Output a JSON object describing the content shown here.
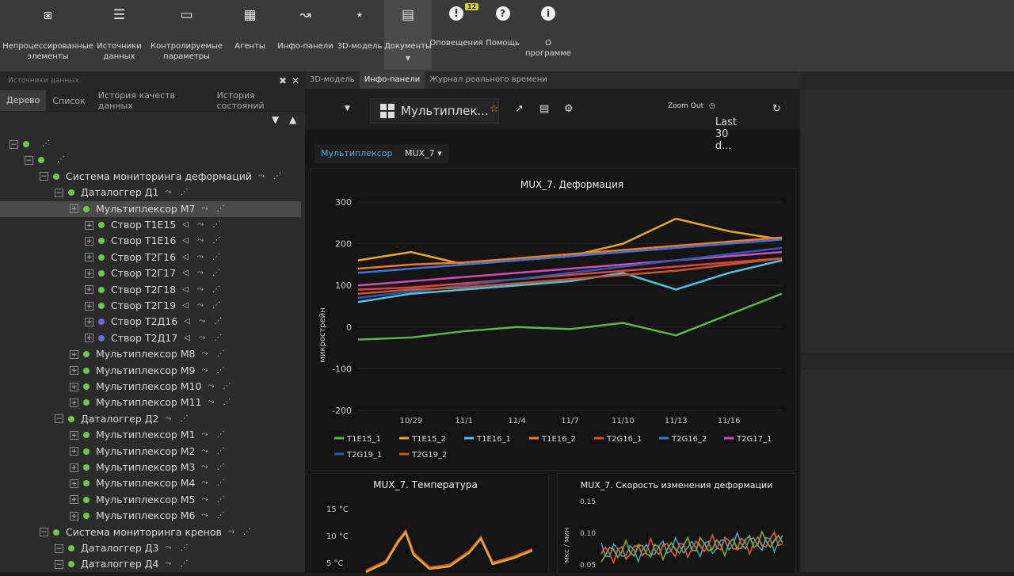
{
  "toolbar": {
    "items": [
      {
        "label": "Непроцессированные\nэлементы",
        "icon": "share-icon"
      },
      {
        "label": "Источники\nданных",
        "icon": "server-icon"
      },
      {
        "label": "Контролируемые\nпараметры",
        "icon": "chart-icon"
      },
      {
        "label": "Агенты",
        "icon": "calculator-icon"
      },
      {
        "label": "Инфо-панели",
        "icon": "trend-icon"
      },
      {
        "label": "3D-модель",
        "icon": "nodes-icon"
      },
      {
        "label": "Документы",
        "icon": "document-icon"
      },
      {
        "label": "Оповещения",
        "icon": "alert-icon"
      },
      {
        "label": "Помощь",
        "icon": "help-icon"
      },
      {
        "label": "О программе",
        "icon": "info-icon"
      }
    ],
    "alert_badge": "12"
  },
  "left_panel": {
    "title": "Источники данных",
    "tabs": [
      "Дерево",
      "Список",
      "История качеств данных",
      "История состояний"
    ],
    "tree": [
      {
        "label": "",
        "level": 0
      },
      {
        "label": "",
        "level": 1
      },
      {
        "label": "Система мониторинга деформаций",
        "level": 2
      },
      {
        "label": "Даталоггер Д1",
        "level": 3
      },
      {
        "label": "Мультиплексор М7",
        "level": 4,
        "selected": true
      },
      {
        "label": "Створ Т1Е15",
        "level": 5
      },
      {
        "label": "Створ Т1Е16",
        "level": 5
      },
      {
        "label": "Створ Т2Г16",
        "level": 5
      },
      {
        "label": "Створ Т2Г17",
        "level": 5
      },
      {
        "label": "Створ Т2Г18",
        "level": 5
      },
      {
        "label": "Створ Т2Г19",
        "level": 5
      },
      {
        "label": "Створ Т2Д16",
        "level": 5,
        "blue": true
      },
      {
        "label": "Створ Т2Д17",
        "level": 5,
        "blue": true
      },
      {
        "label": "Мультиплексор М8",
        "level": 4
      },
      {
        "label": "Мультиплексор М9",
        "level": 4
      },
      {
        "label": "Мультиплексор М10",
        "level": 4
      },
      {
        "label": "Мультиплексор М11",
        "level": 4
      },
      {
        "label": "Даталоггер Д2",
        "level": 3
      },
      {
        "label": "Мультиплексор М1",
        "level": 4
      },
      {
        "label": "Мультиплексор М2",
        "level": 4
      },
      {
        "label": "Мультиплексор М3",
        "level": 4
      },
      {
        "label": "Мультиплексор М4",
        "level": 4
      },
      {
        "label": "Мультиплексор М5",
        "level": 4
      },
      {
        "label": "Мультиплексор М6",
        "level": 4
      },
      {
        "label": "Система мониторинга кренов",
        "level": 2
      },
      {
        "label": "Даталоггер Д3",
        "level": 3
      },
      {
        "label": "Даталоггер Д4",
        "level": 3
      }
    ]
  },
  "center_tabs": [
    "3D-модель",
    "Инфо-панели",
    "Журнал реального времени"
  ],
  "dashboard": {
    "title": "Мультиплек...",
    "zoom_out": "Zoom Out",
    "time_range": "Last 30 d...",
    "variable_label": "Мультиплексор",
    "variable_value": "MUX_7"
  },
  "chart_data": [
    {
      "type": "line",
      "title": "MUX_7. Деформация",
      "ylabel": "микрострейн",
      "ylim": [
        -200,
        300
      ],
      "yticks": [
        "300",
        "200",
        "100",
        "0",
        "-100",
        "-200"
      ],
      "xticks": [
        "10/29",
        "11/1",
        "11/4",
        "11/7",
        "11/10",
        "11/13",
        "11/16"
      ],
      "x": [
        "10/26",
        "10/29",
        "11/1",
        "11/4",
        "11/7",
        "11/10",
        "11/13",
        "11/16",
        "11/19"
      ],
      "series": [
        {
          "name": "T1E15_1",
          "color": "#5fb54a",
          "values": [
            -30,
            -25,
            -10,
            0,
            -5,
            10,
            -20,
            30,
            80
          ]
        },
        {
          "name": "T1E15_2",
          "color": "#e6a82a",
          "values": [
            160,
            180,
            150,
            160,
            170,
            200,
            260,
            230,
            210
          ]
        },
        {
          "name": "T1E16_1",
          "color": "#4ec2e0",
          "values": [
            60,
            80,
            90,
            100,
            110,
            130,
            90,
            130,
            160
          ]
        },
        {
          "name": "T1E16_2",
          "color": "#f07b2c",
          "values": [
            140,
            150,
            155,
            165,
            175,
            185,
            195,
            205,
            215
          ]
        },
        {
          "name": "T2G16_1",
          "color": "#e0443a",
          "values": [
            90,
            95,
            105,
            115,
            125,
            135,
            145,
            155,
            165
          ]
        },
        {
          "name": "T2G16_2",
          "color": "#3f73d6",
          "values": [
            130,
            140,
            150,
            160,
            170,
            180,
            190,
            200,
            210
          ]
        },
        {
          "name": "T2G17_1",
          "color": "#d04fb5",
          "values": [
            100,
            110,
            120,
            130,
            140,
            150,
            160,
            170,
            180
          ]
        },
        {
          "name": "T2G19_1",
          "color": "#2f57b8",
          "values": [
            70,
            85,
            100,
            115,
            130,
            145,
            160,
            175,
            190
          ]
        },
        {
          "name": "T2G19_2",
          "color": "#c8552c",
          "values": [
            80,
            90,
            95,
            105,
            115,
            125,
            135,
            150,
            165
          ]
        }
      ]
    },
    {
      "type": "line",
      "title": "MUX_7. Температура",
      "yticks": [
        "15 °C",
        "10 °C",
        "5 °C"
      ]
    },
    {
      "type": "line",
      "title": "MUX_7. Скорость изменения деформации",
      "ylabel": "мкс / мин",
      "yticks": [
        "0.15",
        "0.10",
        "0.05"
      ]
    }
  ]
}
